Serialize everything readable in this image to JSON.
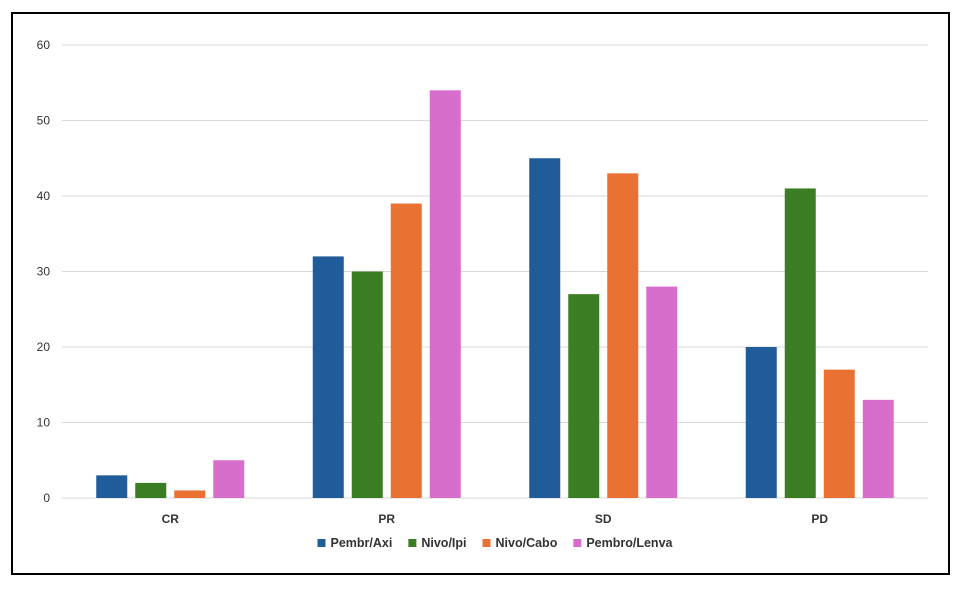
{
  "chart_data": {
    "type": "bar",
    "categories": [
      "CR",
      "PR",
      "SD",
      "PD"
    ],
    "series": [
      {
        "name": "Pembr/Axi",
        "color": "#1f5c99",
        "values": [
          3,
          32,
          45,
          20
        ]
      },
      {
        "name": "Nivo/Ipi",
        "color": "#3b7d23",
        "values": [
          2,
          30,
          27,
          41
        ]
      },
      {
        "name": "Nivo/Cabo",
        "color": "#e97132",
        "values": [
          1,
          39,
          43,
          17
        ]
      },
      {
        "name": "Pembro/Lenva",
        "color": "#d86ecc",
        "values": [
          5,
          54,
          28,
          13
        ]
      }
    ],
    "title": "",
    "xlabel": "",
    "ylabel": "",
    "ylim": [
      0,
      60
    ],
    "yticks": [
      0,
      10,
      20,
      30,
      40,
      50,
      60
    ],
    "grid": true,
    "legend_position": "bottom"
  }
}
